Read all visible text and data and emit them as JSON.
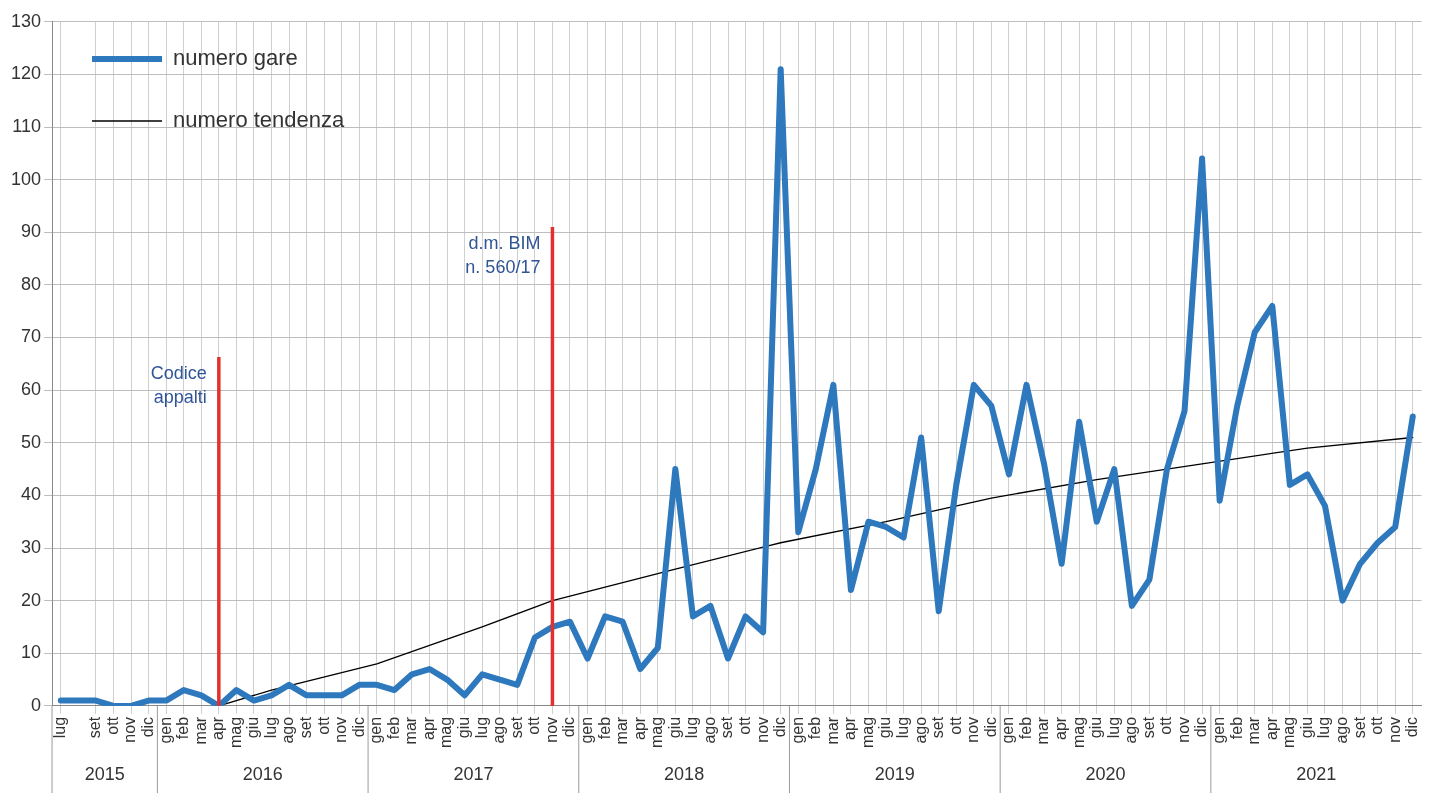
{
  "chart_data": {
    "type": "line",
    "x": [
      "2015-07",
      "2015-09",
      "2015-10",
      "2015-11",
      "2015-12",
      "2016-01",
      "2016-02",
      "2016-03",
      "2016-04",
      "2016-05",
      "2016-06",
      "2016-07",
      "2016-08",
      "2016-09",
      "2016-10",
      "2016-11",
      "2016-12",
      "2017-01",
      "2017-02",
      "2017-03",
      "2017-04",
      "2017-05",
      "2017-06",
      "2017-07",
      "2017-08",
      "2017-09",
      "2017-10",
      "2017-11",
      "2017-12",
      "2018-01",
      "2018-02",
      "2018-03",
      "2018-04",
      "2018-05",
      "2018-06",
      "2018-07",
      "2018-08",
      "2018-09",
      "2018-10",
      "2018-11",
      "2018-12",
      "2019-01",
      "2019-02",
      "2019-03",
      "2019-04",
      "2019-05",
      "2019-06",
      "2019-07",
      "2019-08",
      "2019-09",
      "2019-10",
      "2019-11",
      "2019-12",
      "2020-01",
      "2020-02",
      "2020-03",
      "2020-04",
      "2020-05",
      "2020-06",
      "2020-07",
      "2020-08",
      "2020-09",
      "2020-10",
      "2020-11",
      "2020-12",
      "2021-01",
      "2021-02",
      "2021-03",
      "2021-04",
      "2021-05",
      "2021-06",
      "2021-07",
      "2021-08",
      "2021-09",
      "2021-10",
      "2021-11",
      "2021-12"
    ],
    "xticks": [
      {
        "value": "2015-07",
        "label": "lug"
      },
      {
        "value": "2015-09",
        "label": "set"
      },
      {
        "value": "2015-10",
        "label": "ott"
      },
      {
        "value": "2015-11",
        "label": "nov"
      },
      {
        "value": "2015-12",
        "label": "dic"
      },
      {
        "value": "2016-01",
        "label": "gen"
      },
      {
        "value": "2016-02",
        "label": "feb"
      },
      {
        "value": "2016-03",
        "label": "mar"
      },
      {
        "value": "2016-04",
        "label": "apr"
      },
      {
        "value": "2016-05",
        "label": "mag"
      },
      {
        "value": "2016-06",
        "label": "giu"
      },
      {
        "value": "2016-07",
        "label": "lug"
      },
      {
        "value": "2016-08",
        "label": "ago"
      },
      {
        "value": "2016-09",
        "label": "set"
      },
      {
        "value": "2016-10",
        "label": "ott"
      },
      {
        "value": "2016-11",
        "label": "nov"
      },
      {
        "value": "2016-12",
        "label": "dic"
      },
      {
        "value": "2017-01",
        "label": "gen"
      },
      {
        "value": "2017-02",
        "label": "feb"
      },
      {
        "value": "2017-03",
        "label": "mar"
      },
      {
        "value": "2017-04",
        "label": "apr"
      },
      {
        "value": "2017-05",
        "label": "mag"
      },
      {
        "value": "2017-06",
        "label": "giu"
      },
      {
        "value": "2017-07",
        "label": "lug"
      },
      {
        "value": "2017-08",
        "label": "ago"
      },
      {
        "value": "2017-09",
        "label": "set"
      },
      {
        "value": "2017-10",
        "label": "ott"
      },
      {
        "value": "2017-11",
        "label": "nov"
      },
      {
        "value": "2017-12",
        "label": "dic"
      },
      {
        "value": "2018-01",
        "label": "gen"
      },
      {
        "value": "2018-02",
        "label": "feb"
      },
      {
        "value": "2018-03",
        "label": "mar"
      },
      {
        "value": "2018-04",
        "label": "apr"
      },
      {
        "value": "2018-05",
        "label": "mag"
      },
      {
        "value": "2018-06",
        "label": "giu"
      },
      {
        "value": "2018-07",
        "label": "lug"
      },
      {
        "value": "2018-08",
        "label": "ago"
      },
      {
        "value": "2018-09",
        "label": "set"
      },
      {
        "value": "2018-10",
        "label": "ott"
      },
      {
        "value": "2018-11",
        "label": "nov"
      },
      {
        "value": "2018-12",
        "label": "dic"
      },
      {
        "value": "2019-01",
        "label": "gen"
      },
      {
        "value": "2019-02",
        "label": "feb"
      },
      {
        "value": "2019-03",
        "label": "mar"
      },
      {
        "value": "2019-04",
        "label": "apr"
      },
      {
        "value": "2019-05",
        "label": "mag"
      },
      {
        "value": "2019-06",
        "label": "giu"
      },
      {
        "value": "2019-07",
        "label": "lug"
      },
      {
        "value": "2019-08",
        "label": "ago"
      },
      {
        "value": "2019-09",
        "label": "set"
      },
      {
        "value": "2019-10",
        "label": "ott"
      },
      {
        "value": "2019-11",
        "label": "nov"
      },
      {
        "value": "2019-12",
        "label": "dic"
      },
      {
        "value": "2020-01",
        "label": "gen"
      },
      {
        "value": "2020-02",
        "label": "feb"
      },
      {
        "value": "2020-03",
        "label": "mar"
      },
      {
        "value": "2020-04",
        "label": "apr"
      },
      {
        "value": "2020-05",
        "label": "mag"
      },
      {
        "value": "2020-06",
        "label": "giu"
      },
      {
        "value": "2020-07",
        "label": "lug"
      },
      {
        "value": "2020-08",
        "label": "ago"
      },
      {
        "value": "2020-09",
        "label": "set"
      },
      {
        "value": "2020-10",
        "label": "ott"
      },
      {
        "value": "2020-11",
        "label": "nov"
      },
      {
        "value": "2020-12",
        "label": "dic"
      },
      {
        "value": "2021-01",
        "label": "gen"
      },
      {
        "value": "2021-02",
        "label": "feb"
      },
      {
        "value": "2021-03",
        "label": "mar"
      },
      {
        "value": "2021-04",
        "label": "apr"
      },
      {
        "value": "2021-05",
        "label": "mag"
      },
      {
        "value": "2021-06",
        "label": "giu"
      },
      {
        "value": "2021-07",
        "label": "lug"
      },
      {
        "value": "2021-08",
        "label": "ago"
      },
      {
        "value": "2021-09",
        "label": "set"
      },
      {
        "value": "2021-10",
        "label": "ott"
      },
      {
        "value": "2021-11",
        "label": "nov"
      },
      {
        "value": "2021-12",
        "label": "dic"
      }
    ],
    "series": [
      {
        "name": "numero gare",
        "color": "#2e78bd",
        "values": [
          1,
          1,
          0,
          0,
          1,
          1,
          3,
          2,
          0,
          3,
          1,
          2,
          4,
          2,
          2,
          2,
          4,
          4,
          3,
          6,
          7,
          5,
          2,
          6,
          5,
          4,
          13,
          15,
          16,
          9,
          17,
          16,
          7,
          11,
          45,
          17,
          19,
          9,
          17,
          14,
          121,
          33,
          45,
          61,
          22,
          35,
          34,
          32,
          51,
          18,
          42,
          61,
          57,
          44,
          61,
          46,
          27,
          54,
          35,
          45,
          19,
          24,
          45,
          56,
          104,
          39,
          57,
          71,
          76,
          42,
          44,
          38,
          20,
          27,
          31,
          34,
          55
        ]
      },
      {
        "name": "numero tendenza",
        "color": "#000000",
        "x": [
          "2016-04",
          "2016-07",
          "2017-01",
          "2017-07",
          "2017-11",
          "2018-06",
          "2018-12",
          "2019-06",
          "2019-12",
          "2020-06",
          "2020-12",
          "2021-06",
          "2021-12"
        ],
        "values": [
          0,
          3,
          8,
          15,
          20,
          26,
          31,
          35,
          39.5,
          43,
          46,
          49,
          51
        ]
      }
    ],
    "ylim": [
      0,
      130
    ],
    "yticks": [
      0,
      10,
      20,
      30,
      40,
      50,
      60,
      70,
      80,
      90,
      100,
      110,
      120,
      130
    ],
    "ref_lines": [
      {
        "axis": "x",
        "value": "2016-04",
        "label": "Codice appalti",
        "color": "#e03030"
      },
      {
        "axis": "x",
        "value": "2017-11",
        "label": "d.m. BIM n. 560/17",
        "color": "#e03030"
      }
    ],
    "xlim": [
      "2015-07",
      "2021-12"
    ],
    "annotations": [
      "2015",
      "2016",
      "2017",
      "2018",
      "2019",
      "2020",
      "2021"
    ],
    "grid": true,
    "legend": "top left",
    "marker": "none",
    "line_style": "solid"
  }
}
